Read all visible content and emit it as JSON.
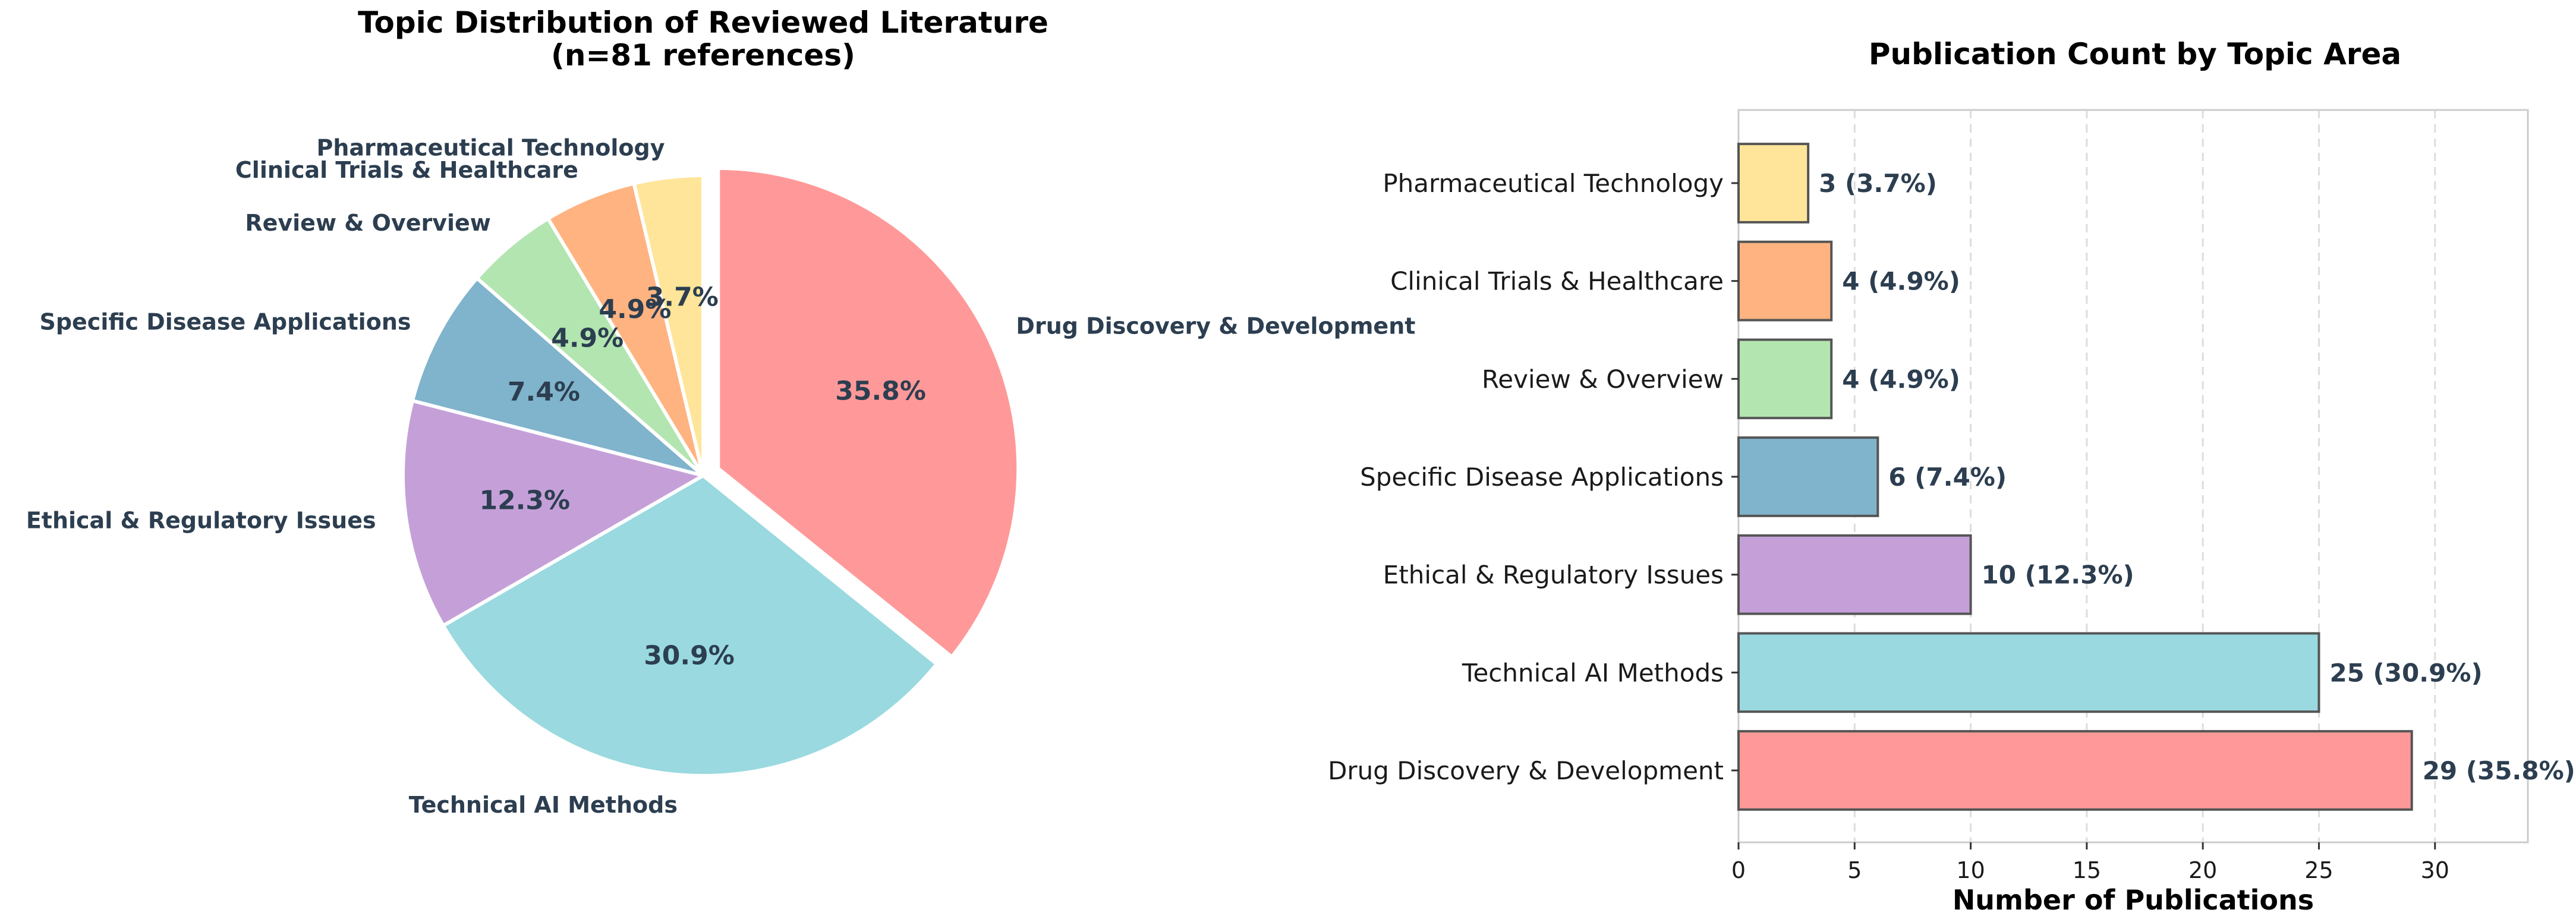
{
  "chart_data": [
    {
      "type": "pie",
      "title": "Topic Distribution of Reviewed Literature",
      "subtitle": "(n=81 references)",
      "labels": [
        "Drug Discovery & Development",
        "Technical AI Methods",
        "Ethical & Regulatory Issues",
        "Specific Disease Applications",
        "Review & Overview",
        "Clinical Trials & Healthcare",
        "Pharmaceutical Technology"
      ],
      "values": [
        29,
        25,
        10,
        6,
        4,
        4,
        3
      ],
      "percent_labels": [
        "35.8%",
        "30.9%",
        "12.3%",
        "7.4%",
        "4.9%",
        "4.9%",
        "3.7%"
      ],
      "colors": [
        "#ff9999",
        "#99d9df",
        "#c5a0d8",
        "#80b3cc",
        "#b3e5b0",
        "#ffb380",
        "#ffe599"
      ],
      "exploded": "Drug Discovery & Development",
      "start_angle_deg": 90,
      "direction": "clockwise"
    },
    {
      "type": "bar",
      "orientation": "horizontal",
      "title": "Publication Count by Topic Area",
      "xlabel": "Number of Publications",
      "ylabel": "",
      "categories": [
        "Pharmaceutical Technology",
        "Clinical Trials & Healthcare",
        "Review & Overview",
        "Specific Disease Applications",
        "Ethical & Regulatory Issues",
        "Technical AI Methods",
        "Drug Discovery & Development"
      ],
      "values": [
        3,
        4,
        4,
        6,
        10,
        25,
        29
      ],
      "value_labels": [
        "3 (3.7%)",
        "4 (4.9%)",
        "4 (4.9%)",
        "6 (7.4%)",
        "10 (12.3%)",
        "25 (30.9%)",
        "29 (35.8%)"
      ],
      "colors": [
        "#ffe599",
        "#ffb380",
        "#b3e5b0",
        "#80b3cc",
        "#c5a0d8",
        "#99d9df",
        "#ff9999"
      ],
      "xlim": [
        0,
        34
      ],
      "xticks": [
        0,
        5,
        10,
        15,
        20,
        25,
        30
      ],
      "grid": "x dashed"
    }
  ]
}
